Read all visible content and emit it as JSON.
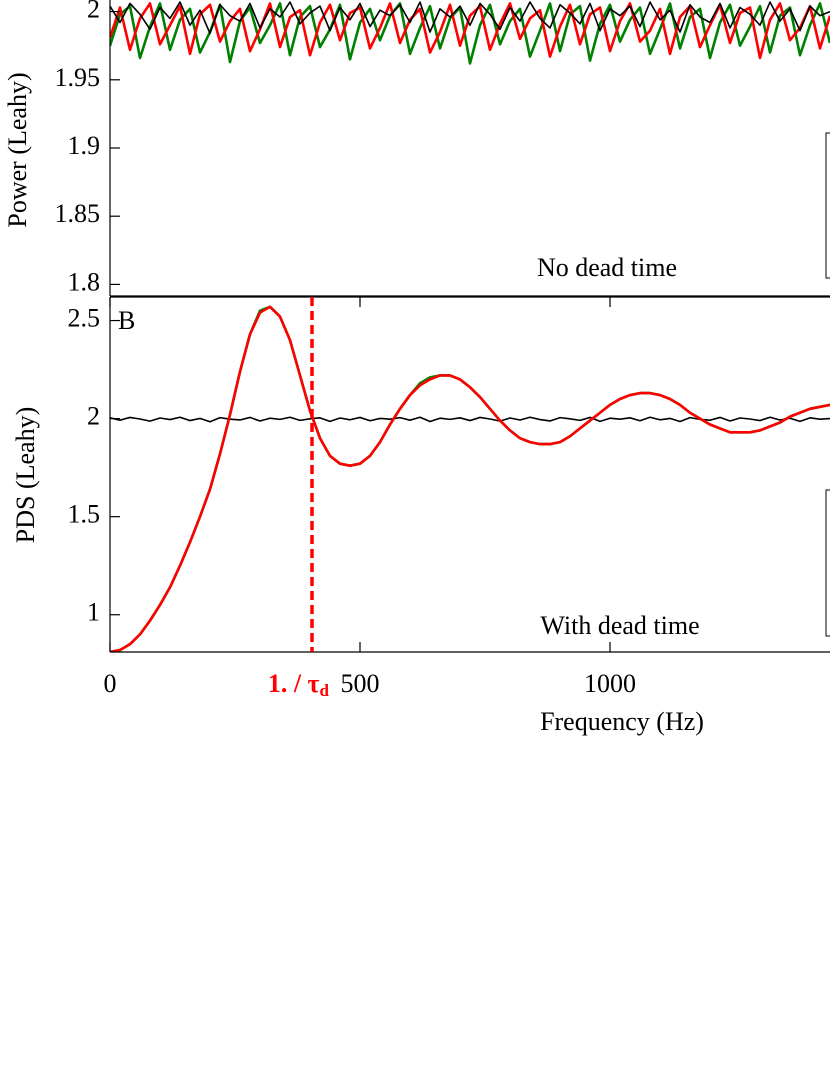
{
  "chart_data": [
    {
      "type": "line",
      "ylabel": "Power (Leahy)",
      "annotation": "No dead time",
      "x": [
        0,
        20,
        40,
        60,
        80,
        100,
        120,
        140,
        160,
        180,
        200,
        220,
        240,
        260,
        280,
        300,
        320,
        340,
        360,
        380,
        400,
        420,
        440,
        460,
        480,
        500,
        520,
        540,
        560,
        580,
        600,
        620,
        640,
        660,
        680,
        700,
        720,
        740,
        760,
        780,
        800,
        820,
        840,
        860,
        880,
        900,
        920,
        940,
        960,
        980,
        1000,
        1020,
        1040,
        1060,
        1080,
        1100,
        1120,
        1140,
        1160,
        1180,
        1200,
        1220,
        1240,
        1260,
        1280,
        1300,
        1320,
        1340,
        1360,
        1380,
        1400,
        1420,
        1440
      ],
      "xlim": [
        0,
        1440
      ],
      "ylim": [
        1.7915,
        2.0085
      ],
      "yticks": [
        1.8,
        1.85,
        1.9,
        1.95,
        2
      ],
      "series": [
        {
          "color": "#008000",
          "values": [
            1.975,
            1.998,
            2.004,
            1.966,
            1.989,
            2.006,
            1.972,
            1.994,
            2.002,
            1.97,
            1.985,
            2.005,
            1.963,
            1.993,
            2.003,
            1.977,
            1.99,
            2.006,
            1.968,
            1.996,
            2.004,
            1.974,
            1.987,
            2.005,
            1.965,
            1.992,
            2.002,
            1.979,
            1.997,
            2.006,
            1.969,
            1.988,
            2.004,
            1.973,
            1.995,
            2.003,
            1.962,
            1.99,
            2.005,
            1.976,
            1.993,
            2.002,
            1.967,
            1.986,
            2.006,
            1.971,
            1.998,
            2.004,
            1.964,
            1.991,
            2.005,
            1.978,
            1.994,
            2.003,
            1.969,
            1.987,
            2.006,
            1.973,
            1.996,
            2.002,
            1.966,
            1.992,
            2.005,
            1.975,
            1.989,
            2.004,
            1.97,
            1.997,
            2.003,
            1.968,
            1.99,
            2.006,
            1.977
          ]
        },
        {
          "color": "#ff0000",
          "values": [
            1.981,
            2.003,
            1.972,
            1.995,
            2.006,
            1.976,
            1.99,
            2.004,
            1.969,
            1.998,
            2.005,
            1.978,
            1.993,
            2.002,
            1.971,
            1.987,
            2.006,
            1.974,
            1.996,
            2.001,
            1.968,
            1.992,
            2.005,
            1.979,
            1.999,
            2.003,
            1.973,
            1.988,
            2.006,
            1.977,
            1.994,
            2.002,
            1.97,
            1.985,
            2.005,
            1.975,
            1.997,
            2.004,
            1.972,
            1.991,
            2.006,
            1.98,
            1.995,
            2.001,
            1.967,
            1.989,
            2.005,
            1.976,
            1.998,
            2.003,
            1.971,
            1.993,
            2.006,
            1.978,
            1.986,
            2.002,
            1.969,
            1.996,
            2.004,
            1.974,
            1.99,
            2.005,
            1.977,
            1.999,
            2.003,
            1.966,
            1.994,
            2.006,
            1.979,
            1.988,
            2.004,
            1.973,
            1.997
          ]
        },
        {
          "color": "#000000",
          "values": [
            2.004,
            1.992,
            2.006,
            1.998,
            1.987,
            2.003,
            1.995,
            2.007,
            1.99,
            2.001,
            1.984,
            2.005,
            1.997,
            1.993,
            2.006,
            1.988,
            2.002,
            1.996,
            2.007,
            1.991,
            1.999,
            2.004,
            1.986,
            2.003,
            1.994,
            2.006,
            1.989,
            2.001,
            1.997,
            2.005,
            1.992,
            2.007,
            1.985,
            2.002,
            1.996,
            2.004,
            1.99,
            2.006,
            1.998,
            1.987,
            2.003,
            1.993,
            2.007,
            1.995,
            1.988,
            2.005,
            1.999,
            1.991,
            2.006,
            1.986,
            2.002,
            1.997,
            2.004,
            1.989,
            2.007,
            1.994,
            2.001,
            1.985,
            2.005,
            1.996,
            1.992,
            2.006,
            1.988,
            2.003,
            1.998,
            1.99,
            2.007,
            1.993,
            2.002,
            1.986,
            2.004,
            1.997,
            2.0
          ]
        }
      ]
    },
    {
      "type": "line",
      "panel_label": "B",
      "ylabel": "PDS (Leahy)",
      "xlabel": "Frequency (Hz)",
      "annotation": "With dead time",
      "x": [
        0,
        20,
        40,
        60,
        80,
        100,
        120,
        140,
        160,
        180,
        200,
        220,
        240,
        260,
        280,
        300,
        320,
        340,
        360,
        380,
        400,
        420,
        440,
        460,
        480,
        500,
        520,
        540,
        560,
        580,
        600,
        620,
        640,
        660,
        680,
        700,
        720,
        740,
        760,
        780,
        800,
        820,
        840,
        860,
        880,
        900,
        920,
        940,
        960,
        980,
        1000,
        1020,
        1040,
        1060,
        1080,
        1100,
        1120,
        1140,
        1160,
        1180,
        1200,
        1220,
        1240,
        1260,
        1280,
        1300,
        1320,
        1340,
        1360,
        1380,
        1400,
        1420,
        1440
      ],
      "xlim": [
        0,
        1440
      ],
      "xticks": [
        0,
        500,
        1000
      ],
      "ylim": [
        0.81,
        2.62
      ],
      "yticks": [
        1,
        1.5,
        2,
        2.5
      ],
      "vline": {
        "x": 404,
        "label": "1. / τ",
        "label_sub": "d",
        "color": "#ff0000"
      },
      "series": [
        {
          "color": "#000000",
          "values": [
            2.004,
            1.992,
            2.006,
            1.998,
            1.987,
            2.003,
            1.995,
            2.007,
            1.99,
            2.001,
            1.984,
            2.005,
            1.997,
            1.993,
            2.006,
            1.988,
            2.002,
            1.996,
            2.007,
            1.991,
            1.999,
            2.004,
            1.986,
            2.003,
            1.994,
            2.006,
            1.989,
            2.001,
            1.997,
            2.005,
            1.992,
            2.007,
            1.985,
            2.002,
            1.996,
            2.004,
            1.99,
            2.006,
            1.998,
            1.987,
            2.003,
            1.993,
            2.007,
            1.995,
            1.988,
            2.005,
            1.999,
            1.991,
            2.006,
            1.986,
            2.002,
            1.997,
            2.004,
            1.989,
            2.007,
            1.994,
            2.001,
            1.985,
            2.005,
            1.996,
            1.992,
            2.006,
            1.988,
            2.003,
            1.998,
            1.99,
            2.007,
            1.993,
            2.002,
            1.986,
            2.004,
            1.997,
            2.0
          ]
        },
        {
          "color": "#008000",
          "values": [
            0.81,
            0.82,
            0.85,
            0.9,
            0.97,
            1.05,
            1.14,
            1.25,
            1.37,
            1.5,
            1.64,
            1.82,
            2.02,
            2.24,
            2.43,
            2.55,
            2.57,
            2.52,
            2.4,
            2.22,
            2.04,
            1.9,
            1.81,
            1.77,
            1.76,
            1.77,
            1.81,
            1.88,
            1.97,
            2.05,
            2.12,
            2.18,
            2.21,
            2.22,
            2.22,
            2.2,
            2.16,
            2.11,
            2.05,
            1.99,
            1.94,
            1.9,
            1.88,
            1.87,
            1.87,
            1.88,
            1.91,
            1.95,
            1.99,
            2.03,
            2.07,
            2.1,
            2.12,
            2.13,
            2.13,
            2.12,
            2.1,
            2.07,
            2.03,
            2.0,
            1.97,
            1.95,
            1.93,
            1.93,
            1.93,
            1.94,
            1.96,
            1.98,
            2.01,
            2.03,
            2.05,
            2.06,
            2.07
          ]
        },
        {
          "color": "#ff0000",
          "values": [
            0.81,
            0.82,
            0.85,
            0.9,
            0.97,
            1.05,
            1.14,
            1.25,
            1.37,
            1.5,
            1.64,
            1.82,
            2.02,
            2.24,
            2.43,
            2.54,
            2.57,
            2.52,
            2.4,
            2.22,
            2.04,
            1.9,
            1.81,
            1.77,
            1.76,
            1.77,
            1.81,
            1.88,
            1.97,
            2.05,
            2.12,
            2.17,
            2.2,
            2.22,
            2.22,
            2.2,
            2.16,
            2.11,
            2.05,
            1.99,
            1.94,
            1.9,
            1.88,
            1.87,
            1.87,
            1.88,
            1.91,
            1.95,
            1.99,
            2.03,
            2.07,
            2.1,
            2.12,
            2.13,
            2.13,
            2.12,
            2.1,
            2.07,
            2.03,
            2.0,
            1.97,
            1.95,
            1.93,
            1.93,
            1.93,
            1.94,
            1.96,
            1.98,
            2.01,
            2.03,
            2.05,
            2.06,
            2.07
          ]
        }
      ]
    }
  ]
}
